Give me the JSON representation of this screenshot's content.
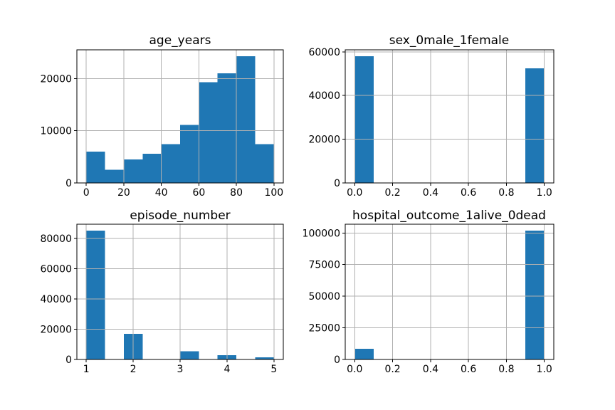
{
  "figure": {
    "background": "#ffffff",
    "bar_color": "#1f77b4",
    "grid_color": "#b0b0b0",
    "spine_color": "#000000",
    "text_color": "#000000"
  },
  "chart_data": [
    {
      "type": "bar",
      "subtype": "histogram",
      "title": "age_years",
      "grid": true,
      "legend": null,
      "xlim": [
        -5,
        105
      ],
      "ylim": [
        0,
        25500
      ],
      "xticks": {
        "values": [
          0,
          20,
          40,
          60,
          80,
          100
        ],
        "labels": [
          "0",
          "20",
          "40",
          "60",
          "80",
          "100"
        ]
      },
      "yticks": {
        "values": [
          0,
          10000,
          20000
        ],
        "labels": [
          "0",
          "10000",
          "20000"
        ]
      },
      "bars": [
        {
          "x0": 0,
          "x1": 10,
          "value": 6000
        },
        {
          "x0": 10,
          "x1": 20,
          "value": 2500
        },
        {
          "x0": 20,
          "x1": 30,
          "value": 4500
        },
        {
          "x0": 30,
          "x1": 40,
          "value": 5600
        },
        {
          "x0": 40,
          "x1": 50,
          "value": 7400
        },
        {
          "x0": 50,
          "x1": 60,
          "value": 11100
        },
        {
          "x0": 60,
          "x1": 70,
          "value": 19300
        },
        {
          "x0": 70,
          "x1": 80,
          "value": 21000
        },
        {
          "x0": 80,
          "x1": 90,
          "value": 24300
        },
        {
          "x0": 90,
          "x1": 100,
          "value": 7400
        }
      ]
    },
    {
      "type": "bar",
      "subtype": "histogram",
      "title": "sex_0male_1female",
      "grid": true,
      "legend": null,
      "xlim": [
        -0.05,
        1.05
      ],
      "ylim": [
        0,
        60900
      ],
      "xticks": {
        "values": [
          0,
          0.2,
          0.4,
          0.6,
          0.8,
          1.0
        ],
        "labels": [
          "0.0",
          "0.2",
          "0.4",
          "0.6",
          "0.8",
          "1.0"
        ]
      },
      "yticks": {
        "values": [
          0,
          20000,
          40000,
          60000
        ],
        "labels": [
          "0",
          "20000",
          "40000",
          "60000"
        ]
      },
      "bars": [
        {
          "x0": 0.0,
          "x1": 0.1,
          "value": 58000
        },
        {
          "x0": 0.9,
          "x1": 1.0,
          "value": 52400
        }
      ]
    },
    {
      "type": "bar",
      "subtype": "histogram",
      "title": "episode_number",
      "grid": true,
      "legend": null,
      "xlim": [
        0.8,
        5.2
      ],
      "ylim": [
        0,
        89300
      ],
      "xticks": {
        "values": [
          1,
          2,
          3,
          4,
          5
        ],
        "labels": [
          "1",
          "2",
          "3",
          "4",
          "5"
        ]
      },
      "yticks": {
        "values": [
          0,
          20000,
          40000,
          60000,
          80000
        ],
        "labels": [
          "0",
          "20000",
          "40000",
          "60000",
          "80000"
        ]
      },
      "bars": [
        {
          "x0": 1.0,
          "x1": 1.4,
          "value": 85000
        },
        {
          "x0": 1.8,
          "x1": 2.2,
          "value": 16900
        },
        {
          "x0": 3.0,
          "x1": 3.4,
          "value": 5400
        },
        {
          "x0": 3.8,
          "x1": 4.2,
          "value": 2800
        },
        {
          "x0": 4.6,
          "x1": 5.0,
          "value": 1500
        }
      ]
    },
    {
      "type": "bar",
      "subtype": "histogram",
      "title": "hospital_outcome_1alive_0dead",
      "grid": true,
      "legend": null,
      "xlim": [
        -0.05,
        1.05
      ],
      "ylim": [
        0,
        106900
      ],
      "xticks": {
        "values": [
          0,
          0.2,
          0.4,
          0.6,
          0.8,
          1.0
        ],
        "labels": [
          "0.0",
          "0.2",
          "0.4",
          "0.6",
          "0.8",
          "1.0"
        ]
      },
      "yticks": {
        "values": [
          0,
          25000,
          50000,
          75000,
          100000
        ],
        "labels": [
          "0",
          "25000",
          "50000",
          "75000",
          "100000"
        ]
      },
      "bars": [
        {
          "x0": 0.0,
          "x1": 0.1,
          "value": 8400
        },
        {
          "x0": 0.9,
          "x1": 1.0,
          "value": 101800
        }
      ]
    }
  ]
}
